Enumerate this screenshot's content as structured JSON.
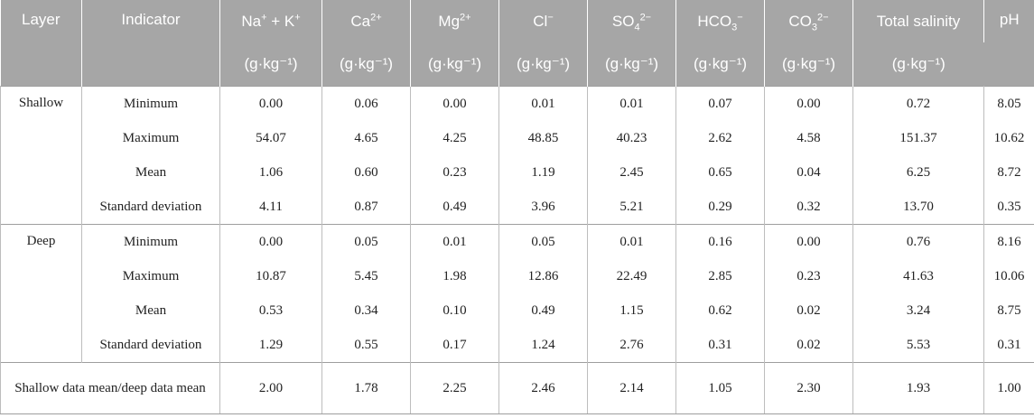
{
  "headers": {
    "layer": "Layer",
    "indicator": "Indicator",
    "columns": [
      {
        "base": "Na",
        "sup1": "+",
        "mid": " + K",
        "sup2": "+",
        "sub": "",
        "tail": "",
        "unit": "(g·kg⁻¹)"
      },
      {
        "base": "Ca",
        "sup1": "2+",
        "mid": "",
        "sup2": "",
        "sub": "",
        "tail": "",
        "unit": "(g·kg⁻¹)"
      },
      {
        "base": "Mg",
        "sup1": "2+",
        "mid": "",
        "sup2": "",
        "sub": "",
        "tail": "",
        "unit": "(g·kg⁻¹)"
      },
      {
        "base": "Cl",
        "sup1": "−",
        "mid": "",
        "sup2": "",
        "sub": "",
        "tail": "",
        "unit": "(g·kg⁻¹)"
      },
      {
        "base": "SO",
        "sup1": "",
        "mid": "",
        "sup2": "",
        "sub": "4",
        "tail": "2−",
        "unit": "(g·kg⁻¹)"
      },
      {
        "base": "HCO",
        "sup1": "",
        "mid": "",
        "sup2": "",
        "sub": "3",
        "tail": "−",
        "unit": "(g·kg⁻¹)"
      },
      {
        "base": "CO",
        "sup1": "",
        "mid": "",
        "sup2": "",
        "sub": "3",
        "tail": "2−",
        "unit": "(g·kg⁻¹)"
      },
      {
        "base": "Total salinity",
        "sup1": "",
        "mid": "",
        "sup2": "",
        "sub": "",
        "tail": "",
        "unit": "(g·kg⁻¹)"
      },
      {
        "base": "pH",
        "sup1": "",
        "mid": "",
        "sup2": "",
        "sub": "",
        "tail": "",
        "unit": ""
      }
    ]
  },
  "groups": [
    {
      "layer": "Shallow",
      "rows": [
        {
          "indicator": "Minimum",
          "values": [
            "0.00",
            "0.06",
            "0.00",
            "0.01",
            "0.01",
            "0.07",
            "0.00",
            "0.72",
            "8.05"
          ]
        },
        {
          "indicator": "Maximum",
          "values": [
            "54.07",
            "4.65",
            "4.25",
            "48.85",
            "40.23",
            "2.62",
            "4.58",
            "151.37",
            "10.62"
          ]
        },
        {
          "indicator": "Mean",
          "values": [
            "1.06",
            "0.60",
            "0.23",
            "1.19",
            "2.45",
            "0.65",
            "0.04",
            "6.25",
            "8.72"
          ]
        },
        {
          "indicator": "Standard deviation",
          "values": [
            "4.11",
            "0.87",
            "0.49",
            "3.96",
            "5.21",
            "0.29",
            "0.32",
            "13.70",
            "0.35"
          ]
        }
      ]
    },
    {
      "layer": "Deep",
      "rows": [
        {
          "indicator": "Minimum",
          "values": [
            "0.00",
            "0.05",
            "0.01",
            "0.05",
            "0.01",
            "0.16",
            "0.00",
            "0.76",
            "8.16"
          ]
        },
        {
          "indicator": "Maximum",
          "values": [
            "10.87",
            "5.45",
            "1.98",
            "12.86",
            "22.49",
            "2.85",
            "0.23",
            "41.63",
            "10.06"
          ]
        },
        {
          "indicator": "Mean",
          "values": [
            "0.53",
            "0.34",
            "0.10",
            "0.49",
            "1.15",
            "0.62",
            "0.02",
            "3.24",
            "8.75"
          ]
        },
        {
          "indicator": "Standard deviation",
          "values": [
            "1.29",
            "0.55",
            "0.17",
            "1.24",
            "2.76",
            "0.31",
            "0.02",
            "5.53",
            "0.31"
          ]
        }
      ]
    }
  ],
  "ratio": {
    "label": "Shallow data mean/deep data mean",
    "values": [
      "2.00",
      "1.78",
      "2.25",
      "2.46",
      "2.14",
      "1.05",
      "2.30",
      "1.93",
      "1.00"
    ]
  }
}
